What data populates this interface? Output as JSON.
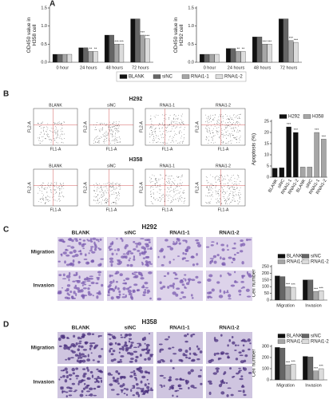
{
  "panel_labels": [
    "A",
    "B",
    "C",
    "D"
  ],
  "flow": {
    "rows": [
      "H292",
      "H358"
    ],
    "columns": [
      "BLANK",
      "siNC",
      "RNAi1-1",
      "RNAi1-2"
    ],
    "x_label": "FL1-A",
    "y_label": "FL2-A"
  },
  "micro": [
    {
      "title": "H292",
      "columns": [
        "BLANK",
        "siNC",
        "RNAi1-1",
        "RNAi1-2"
      ],
      "rows": [
        "Migration",
        "Invasion"
      ]
    },
    {
      "title": "H358",
      "columns": [
        "BLANK",
        "siNC",
        "RNAi1-1",
        "RNAi1-2"
      ],
      "rows": [
        "Migration",
        "Invasion"
      ]
    }
  ],
  "chart_data": [
    {
      "type": "bar",
      "ylabel": [
        "OD450 value in",
        "H358 cell"
      ],
      "categories": [
        "0 hour",
        "24 hours",
        "48 hours",
        "72 hours"
      ],
      "series": [
        {
          "name": "BLANK",
          "color": "#111111",
          "values": [
            0.22,
            0.4,
            0.75,
            1.2
          ],
          "value_labels": [
            null,
            null,
            null,
            null
          ]
        },
        {
          "name": "siNC",
          "color": "#666666",
          "values": [
            0.22,
            0.4,
            0.75,
            1.2
          ],
          "value_labels": [
            null,
            null,
            null,
            null
          ]
        },
        {
          "name": "RNAi1-1",
          "color": "#a6a6a6",
          "values": [
            0.22,
            0.3,
            0.5,
            0.75
          ],
          "value_labels": [
            null,
            "**",
            "***",
            "***"
          ]
        },
        {
          "name": "RNAi1-2",
          "color": "#dcdcdc",
          "values": [
            0.22,
            0.3,
            0.5,
            0.65
          ],
          "value_labels": [
            null,
            "**",
            "***",
            "***"
          ]
        }
      ],
      "ylim": [
        0,
        1.5
      ],
      "yticks": [
        {
          "value": 0,
          "label": "0.0"
        },
        0.5,
        {
          "value": 1,
          "label": "1.0"
        },
        1.5
      ]
    },
    {
      "type": "bar",
      "ylabel": [
        "OD450 value in",
        "H292 cell"
      ],
      "categories": [
        "0 hour",
        "24 hours",
        "48 hours",
        "72 hours"
      ],
      "series": [
        {
          "color": "#111111",
          "values": [
            0.22,
            0.38,
            0.7,
            1.2
          ],
          "value_labels": [
            null,
            null,
            null,
            null
          ]
        },
        {
          "color": "#666666",
          "values": [
            0.22,
            0.38,
            0.7,
            1.2
          ],
          "value_labels": [
            null,
            null,
            null,
            null
          ]
        },
        {
          "color": "#a6a6a6",
          "values": [
            0.22,
            0.3,
            0.5,
            0.6
          ],
          "value_labels": [
            null,
            "**",
            "***",
            "***"
          ]
        },
        {
          "color": "#dcdcdc",
          "values": [
            0.22,
            0.3,
            0.5,
            0.55
          ],
          "value_labels": [
            null,
            "**",
            "***",
            "***"
          ]
        }
      ],
      "ylim": [
        0,
        1.5
      ],
      "yticks": [
        {
          "value": 0,
          "label": "0.0"
        },
        0.5,
        {
          "value": 1,
          "label": "1.0"
        },
        1.5
      ]
    },
    {
      "type": "bar",
      "ylabel": [
        "Apoptosis (%)"
      ],
      "categories": [
        "BLANK",
        "siNC",
        "RNAi1-1",
        "RNAi1-2",
        "BLANK",
        "siNC",
        "RNAi1-1",
        "RNAi1-2"
      ],
      "series": [
        {
          "name": "H292",
          "color": "#111111",
          "values": [
            4,
            4.2,
            22.5,
            20,
            null,
            null,
            null,
            null
          ],
          "value_labels": [
            null,
            null,
            "***",
            "***",
            null,
            null,
            null,
            null
          ]
        },
        {
          "name": "H358",
          "color": "#a6a6a6",
          "values": [
            null,
            null,
            null,
            null,
            4.5,
            4.5,
            20,
            17
          ],
          "value_labels": [
            null,
            null,
            null,
            null,
            null,
            null,
            "***",
            "***"
          ]
        }
      ],
      "ylim": [
        0,
        25
      ],
      "yticks": [
        0,
        5,
        10,
        15,
        20,
        25
      ]
    },
    {
      "type": "bar",
      "ylabel": [
        "Cell number"
      ],
      "categories": [
        "Migration",
        "Invasion"
      ],
      "series": [
        {
          "name": "BLANK",
          "color": "#111111",
          "values": [
            180,
            150
          ],
          "value_labels": [
            null,
            null
          ]
        },
        {
          "name": "siNC",
          "color": "#666666",
          "values": [
            175,
            150
          ],
          "value_labels": [
            null,
            null
          ]
        },
        {
          "name": "RNAi1-1",
          "color": "#a6a6a6",
          "values": [
            100,
            65
          ],
          "value_labels": [
            "***",
            "***"
          ]
        },
        {
          "name": "RNAi1-2",
          "color": "#dcdcdc",
          "values": [
            95,
            70
          ],
          "value_labels": [
            "***",
            "***"
          ]
        }
      ],
      "ylim": [
        0,
        250
      ],
      "yticks": [
        0,
        50,
        100,
        150,
        200,
        250
      ]
    },
    {
      "type": "bar",
      "ylabel": [
        "Cell number"
      ],
      "categories": [
        "Migration",
        "Invasion"
      ],
      "series": [
        {
          "name": "BLANK",
          "color": "#111111",
          "values": [
            290,
            210
          ],
          "value_labels": [
            null,
            null
          ]
        },
        {
          "name": "siNC",
          "color": "#666666",
          "values": [
            285,
            205
          ],
          "value_labels": [
            null,
            null
          ]
        },
        {
          "name": "RNAi1-1",
          "color": "#a6a6a6",
          "values": [
            135,
            80
          ],
          "value_labels": [
            "***",
            "***"
          ]
        },
        {
          "name": "RNAi1-2",
          "color": "#dcdcdc",
          "values": [
            140,
            100
          ],
          "value_labels": [
            "***",
            "***"
          ]
        }
      ],
      "ylim": [
        0,
        300
      ],
      "yticks": [
        0,
        100,
        200,
        300
      ]
    }
  ]
}
